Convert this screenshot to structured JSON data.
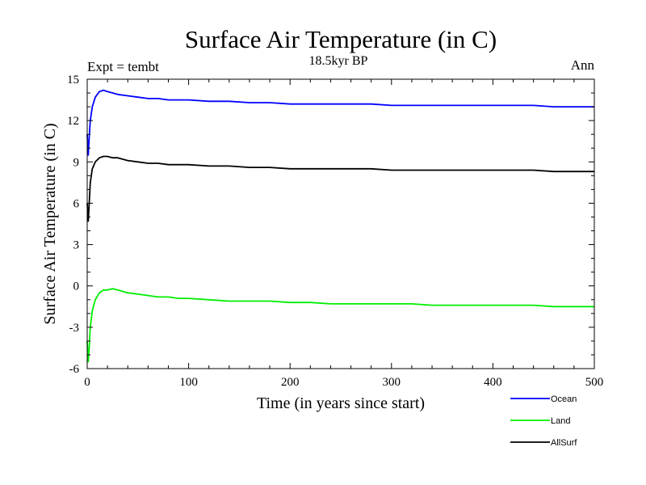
{
  "chart_data": {
    "type": "line",
    "title": "Surface Air Temperature (in C)",
    "subtitle": "18.5kyr BP",
    "left_label": "Expt = tembt",
    "right_label": "Ann",
    "xlabel": "Time (in years since start)",
    "ylabel": "Surface Air Temperature (in C)",
    "xlim": [
      0,
      500
    ],
    "ylim": [
      -6,
      15
    ],
    "xticks": [
      0,
      100,
      200,
      300,
      400,
      500
    ],
    "xtick_labels": [
      "0",
      "100",
      "200",
      "300",
      "400",
      "500"
    ],
    "yticks": [
      15,
      12,
      9,
      6,
      3,
      0,
      -3,
      -6
    ],
    "ytick_labels": [
      "15",
      "12",
      "9",
      "6",
      "3",
      "0",
      "-3",
      "-6"
    ],
    "grid": false,
    "legend_position": "bottom-right, outside plot",
    "series": [
      {
        "name": "Ocean",
        "color": "#0000ff",
        "x": [
          0,
          1,
          2,
          3,
          5,
          8,
          12,
          16,
          20,
          25,
          30,
          40,
          50,
          60,
          70,
          80,
          90,
          100,
          120,
          140,
          160,
          180,
          200,
          220,
          240,
          260,
          280,
          300,
          320,
          340,
          360,
          380,
          400,
          420,
          440,
          460,
          480,
          500
        ],
        "y": [
          11.0,
          9.5,
          10.8,
          12.0,
          13.0,
          13.7,
          14.1,
          14.2,
          14.1,
          14.0,
          13.9,
          13.8,
          13.7,
          13.6,
          13.6,
          13.5,
          13.5,
          13.5,
          13.4,
          13.4,
          13.3,
          13.3,
          13.2,
          13.2,
          13.2,
          13.2,
          13.2,
          13.1,
          13.1,
          13.1,
          13.1,
          13.1,
          13.1,
          13.1,
          13.1,
          13.0,
          13.0,
          13.0
        ]
      },
      {
        "name": "Land",
        "color": "#00ee00",
        "x": [
          0,
          1,
          2,
          3,
          5,
          8,
          12,
          16,
          20,
          25,
          30,
          40,
          50,
          60,
          70,
          80,
          90,
          100,
          120,
          140,
          160,
          180,
          200,
          220,
          240,
          260,
          280,
          300,
          320,
          340,
          360,
          380,
          400,
          420,
          440,
          460,
          480,
          500
        ],
        "y": [
          -4.0,
          -5.5,
          -4.5,
          -3.0,
          -1.8,
          -1.0,
          -0.5,
          -0.3,
          -0.3,
          -0.2,
          -0.3,
          -0.5,
          -0.6,
          -0.7,
          -0.8,
          -0.8,
          -0.9,
          -0.9,
          -1.0,
          -1.1,
          -1.1,
          -1.1,
          -1.2,
          -1.2,
          -1.3,
          -1.3,
          -1.3,
          -1.3,
          -1.3,
          -1.4,
          -1.4,
          -1.4,
          -1.4,
          -1.4,
          -1.4,
          -1.5,
          -1.5,
          -1.5
        ]
      },
      {
        "name": "AllSurf",
        "color": "#000000",
        "x": [
          0,
          1,
          2,
          3,
          5,
          8,
          12,
          16,
          20,
          25,
          30,
          40,
          50,
          60,
          70,
          80,
          90,
          100,
          120,
          140,
          160,
          180,
          200,
          220,
          240,
          260,
          280,
          300,
          320,
          340,
          360,
          380,
          400,
          420,
          440,
          460,
          480,
          500
        ],
        "y": [
          6.0,
          4.7,
          6.0,
          7.5,
          8.5,
          9.0,
          9.3,
          9.4,
          9.4,
          9.3,
          9.3,
          9.1,
          9.0,
          8.9,
          8.9,
          8.8,
          8.8,
          8.8,
          8.7,
          8.7,
          8.6,
          8.6,
          8.5,
          8.5,
          8.5,
          8.5,
          8.5,
          8.4,
          8.4,
          8.4,
          8.4,
          8.4,
          8.4,
          8.4,
          8.4,
          8.3,
          8.3,
          8.3
        ]
      }
    ]
  }
}
